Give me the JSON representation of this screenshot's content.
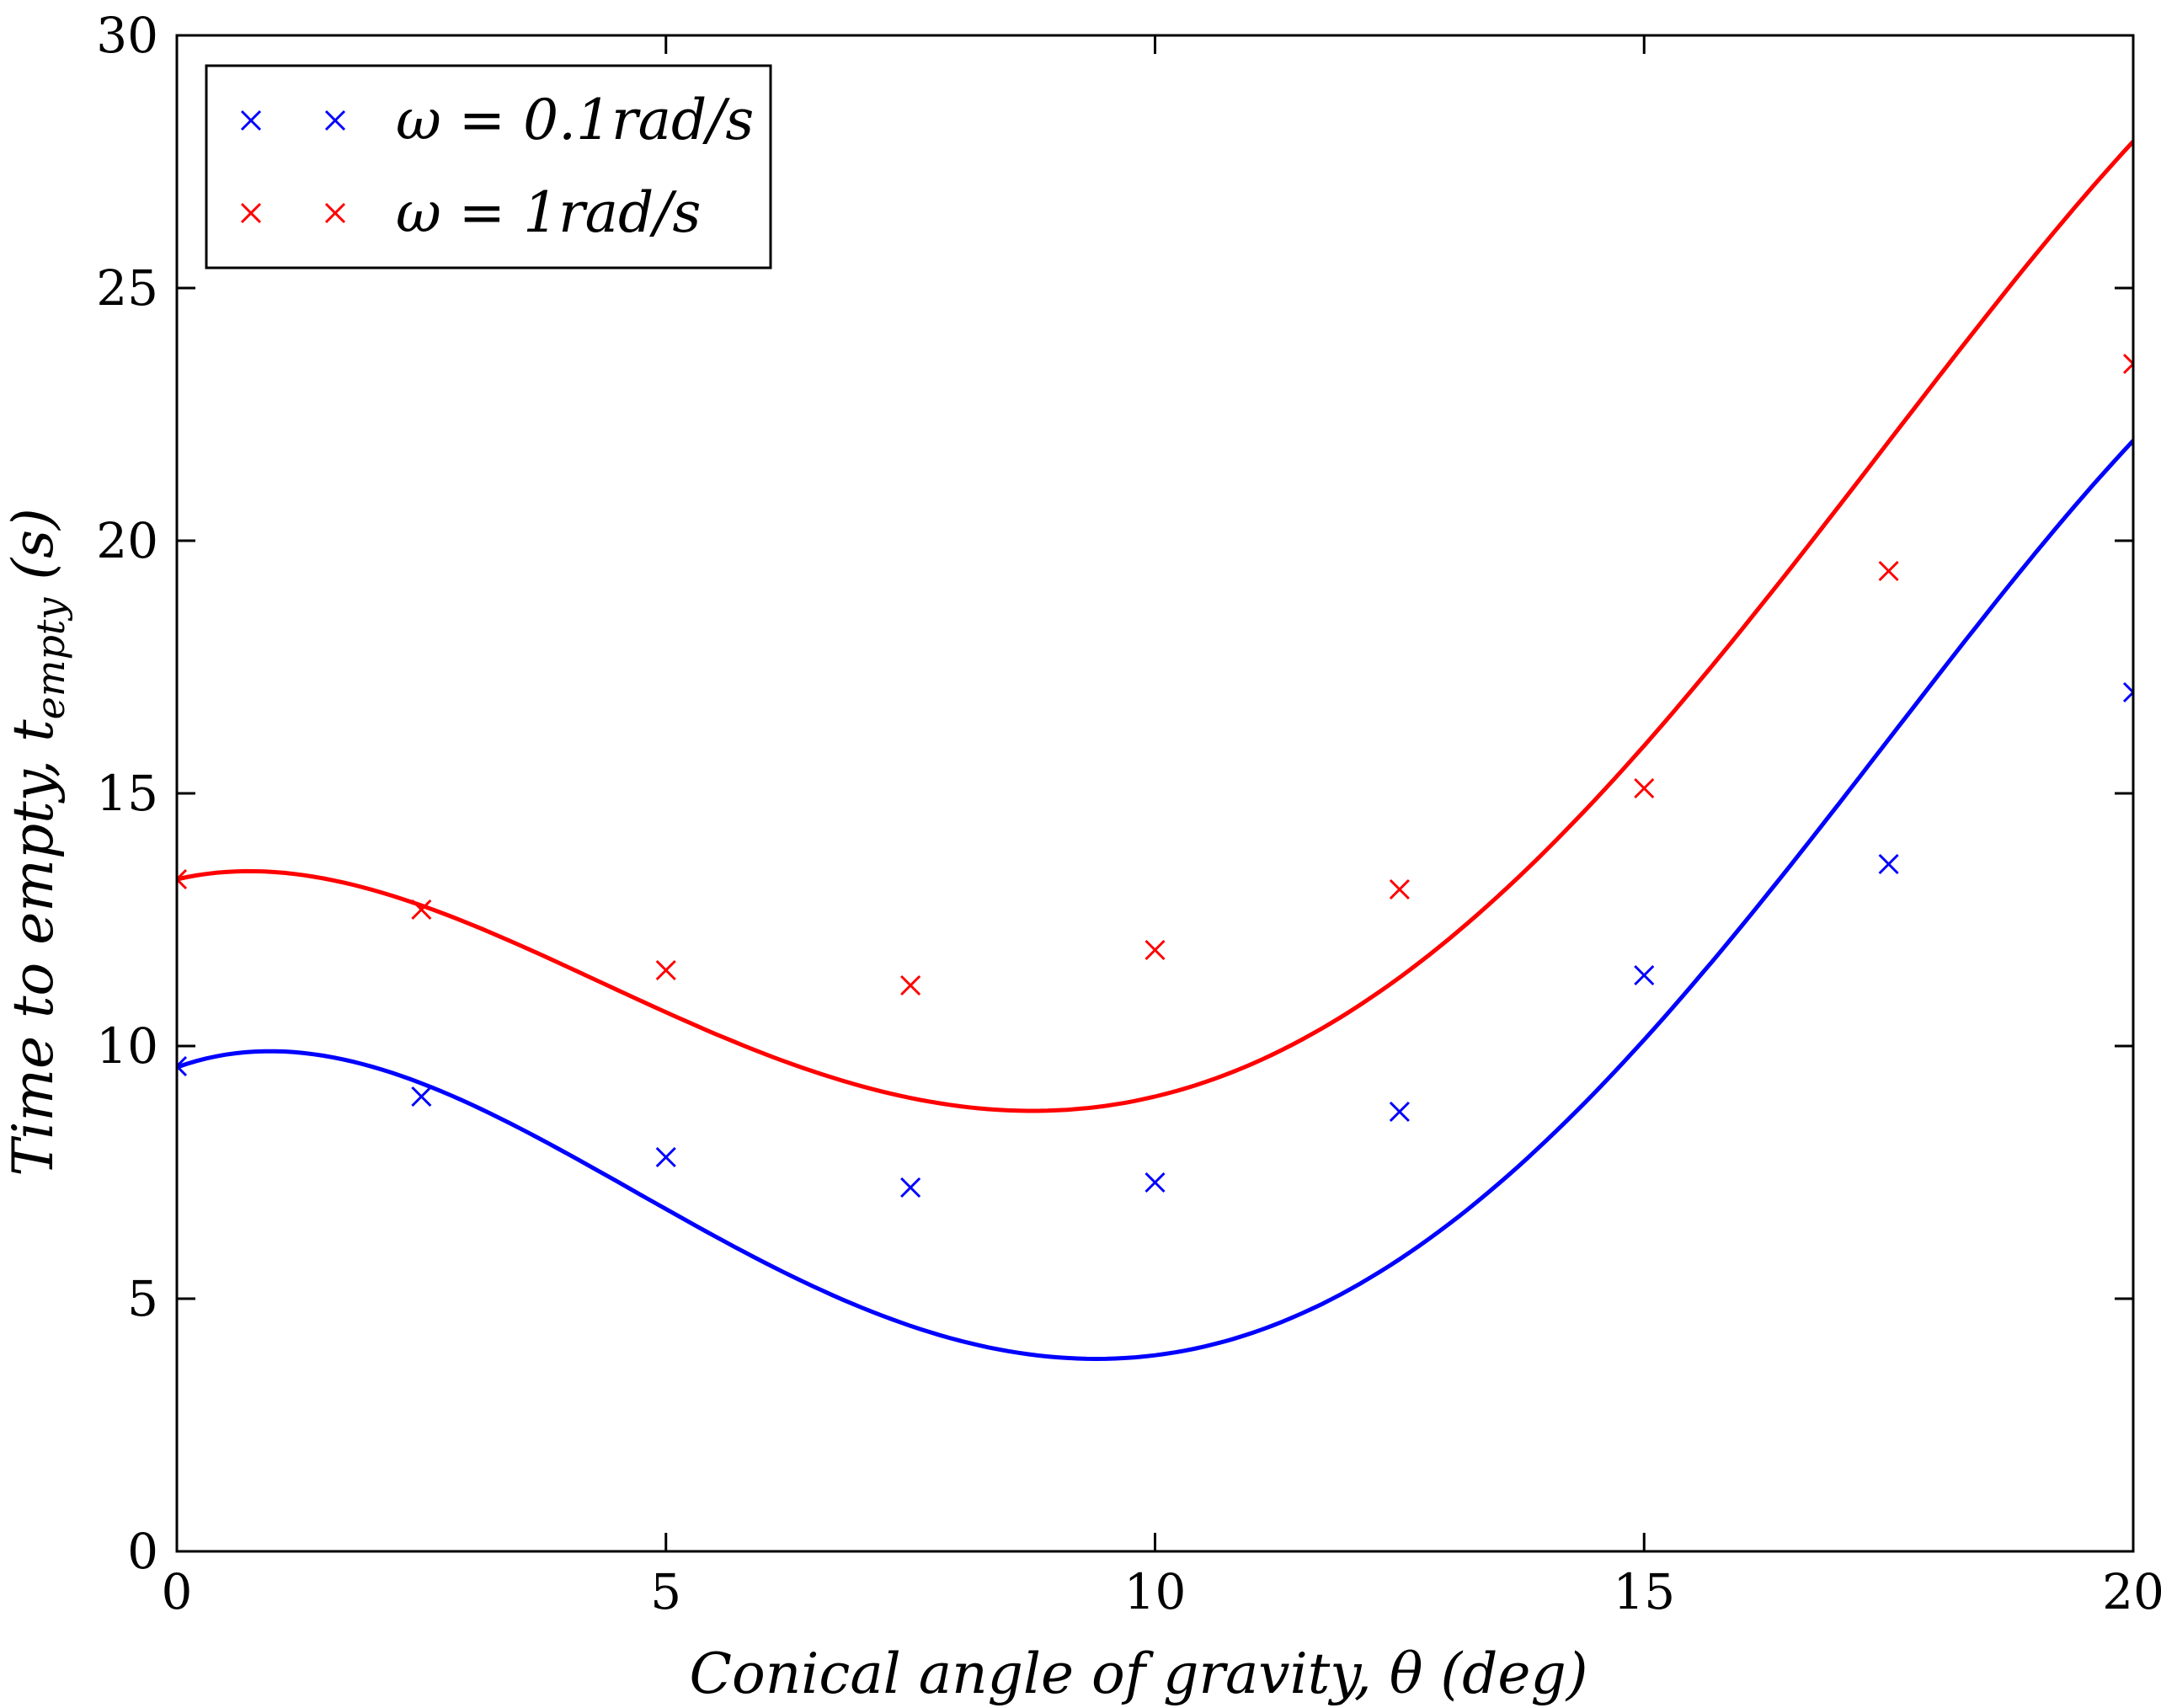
{
  "chart_data": {
    "type": "scatter",
    "title": "",
    "xlabel": "Conical angle of gravity, θ (deg)",
    "ylabel": "Time to empty, t_empty (s)",
    "ylabel_parts": {
      "main": "Time to empty, t",
      "sub": "empty",
      "tail": " (s)"
    },
    "xlim": [
      0,
      20
    ],
    "ylim": [
      0,
      30
    ],
    "xticks": [
      0,
      5,
      10,
      15,
      20
    ],
    "yticks": [
      0,
      5,
      10,
      15,
      20,
      25,
      30
    ],
    "grid": false,
    "legend_position": "top-left",
    "series": [
      {
        "name": "ω = 0.1rad/s",
        "color": "#0000ff",
        "marker": "x",
        "x": [
          0,
          2.5,
          5,
          7.5,
          10,
          12.5,
          15,
          17.5,
          20
        ],
        "y": [
          9.6,
          9.0,
          7.8,
          7.2,
          7.3,
          8.7,
          11.4,
          13.6,
          17.0
        ],
        "fit_coefficients": [
          9.58,
          0.7,
          -0.42,
          0.0378,
          -0.00085
        ]
      },
      {
        "name": "ω = 1rad/s",
        "color": "#ff0000",
        "marker": "x",
        "x": [
          0,
          2.5,
          5,
          7.5,
          10,
          12.5,
          15,
          17.5,
          20
        ],
        "y": [
          13.3,
          12.7,
          11.5,
          11.2,
          11.9,
          13.1,
          15.1,
          19.4,
          23.5
        ],
        "fit_coefficients": [
          13.3,
          0.45,
          -0.34,
          0.0327,
          -0.00075
        ]
      }
    ]
  }
}
